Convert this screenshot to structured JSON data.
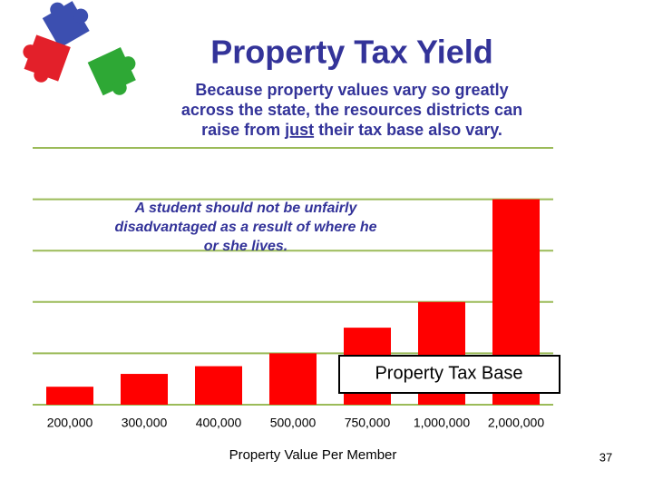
{
  "chart_data": {
    "type": "bar",
    "title": "Property Tax Yield",
    "subtitle": [
      "Because property values vary so greatly",
      "across the state, the resources districts can",
      [
        "raise from ",
        "just",
        " their tax base also vary."
      ]
    ],
    "annotation": [
      "A student should not be unfairly",
      "disadvantaged as a result of where he",
      "or she lives."
    ],
    "x_label": "Property Value Per Member",
    "categories": [
      "200,000",
      "300,000",
      "400,000",
      "500,000",
      "750,000",
      "1,000,000",
      "2,000,000"
    ],
    "series": [
      {
        "name": "Property Tax Base",
        "color": "#ff0000",
        "values": [
          0.35,
          0.6,
          0.75,
          1,
          1.5,
          2,
          4
        ]
      }
    ],
    "ylim": [
      0,
      5
    ],
    "yticks": [
      0,
      1,
      2,
      3,
      4,
      5
    ],
    "grid": true,
    "grid_color": "#9bbb59",
    "page_number": "37"
  }
}
